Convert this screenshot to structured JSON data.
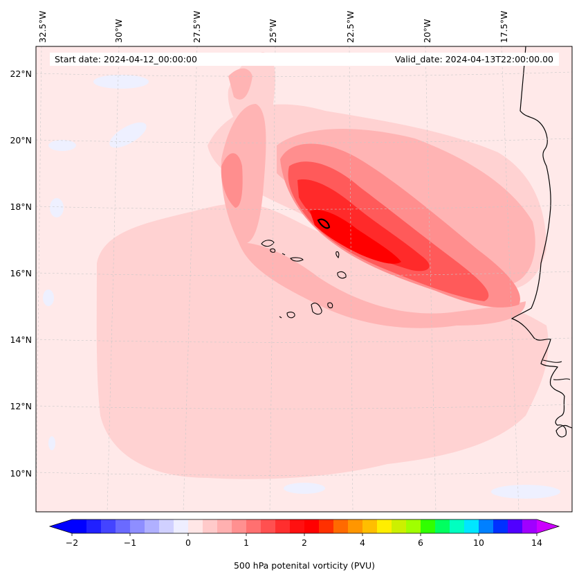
{
  "map": {
    "title_left": "Start date: 2024-04-12_00:00:00",
    "title_right": "Valid_date: 2024-04-13T22:00:00.00",
    "lon_labels": [
      "32.5°W",
      "30°W",
      "27.5°W",
      "25°W",
      "22.5°W",
      "20°W",
      "17.5°W"
    ],
    "lat_labels": [
      "22°N",
      "20°N",
      "18°N",
      "16°N",
      "14°N",
      "12°N",
      "10°N"
    ]
  },
  "colorbar": {
    "label": "500 hPa potenital vorticity (PVU)",
    "tick_labels": [
      "−2",
      "−1",
      "0",
      "1",
      "2",
      "4",
      "6",
      "10",
      "14"
    ],
    "colors": [
      "#0000ff",
      "#2020ff",
      "#4444ff",
      "#6a6aff",
      "#8e8eff",
      "#b0b0ff",
      "#d0d0ff",
      "#eeeeff",
      "#ffe6e6",
      "#ffcaca",
      "#ffb0b0",
      "#ff9090",
      "#ff7070",
      "#ff5050",
      "#ff2e2e",
      "#ff1010",
      "#ff0000",
      "#ff3000",
      "#ff6a00",
      "#ff9600",
      "#ffbe00",
      "#ffee00",
      "#ccf000",
      "#a0ff00",
      "#30ff00",
      "#00ff60",
      "#00ffc0",
      "#00e6ff",
      "#0080ff",
      "#0030ff",
      "#5000ff",
      "#a000ff"
    ]
  }
}
